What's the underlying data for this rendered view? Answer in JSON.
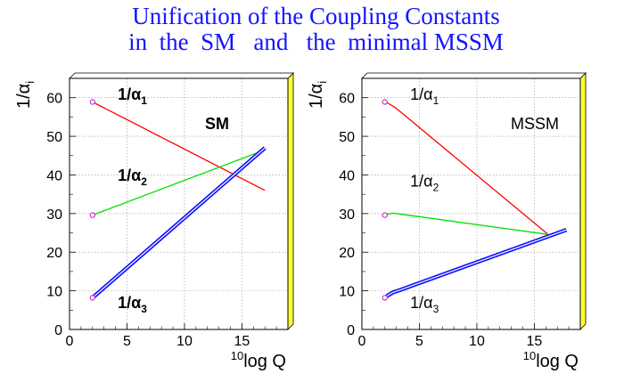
{
  "title": {
    "line1": "Unification of the Coupling Constants",
    "line2": "in  the  SM   and   the  minimal MSSM"
  },
  "colors": {
    "title": "#1414ff",
    "alpha1": "#ff0000",
    "alpha2": "#00e000",
    "alpha3": "#1010ff",
    "frame_shadow": "#ffff33",
    "marker": "#cc33cc"
  },
  "chart_data": [
    {
      "type": "line",
      "panel": "SM",
      "annotation": "SM",
      "ylabel_main": "1/α",
      "ylabel_sub": "i",
      "xlabel_sup": "10",
      "xlabel_main": "log Q",
      "xlim": [
        0,
        19
      ],
      "ylim": [
        0,
        65
      ],
      "xticks": [
        0,
        5,
        10,
        15
      ],
      "yticks": [
        0,
        10,
        20,
        30,
        40,
        50,
        60
      ],
      "grid": true,
      "series": [
        {
          "name": "1/α₁",
          "label_main": "1/α",
          "label_sub": "1",
          "label_x": 4.2,
          "label_y": 59.5,
          "color_key": "alpha1",
          "x": [
            2,
            17
          ],
          "y": [
            58.9,
            36.0
          ],
          "marker_at_start": true
        },
        {
          "name": "1/α₂",
          "label_main": "1/α",
          "label_sub": "2",
          "label_x": 4.2,
          "label_y": 38.5,
          "color_key": "alpha2",
          "x": [
            2,
            17
          ],
          "y": [
            29.6,
            46.5
          ],
          "marker_at_start": true
        },
        {
          "name": "1/α₃",
          "label_main": "1/α",
          "label_sub": "3",
          "label_x": 4.2,
          "label_y": 5.5,
          "color_key": "alpha3",
          "x": [
            2,
            17
          ],
          "y": [
            8.2,
            47.0
          ],
          "marker_at_start": true,
          "band": true
        }
      ]
    },
    {
      "type": "line",
      "panel": "MSSM",
      "annotation": "MSSM",
      "ylabel_main": "1/α",
      "ylabel_sub": "i",
      "xlabel_sup": "10",
      "xlabel_main": "log Q",
      "xlim": [
        0,
        19
      ],
      "ylim": [
        0,
        65
      ],
      "xticks": [
        0,
        5,
        10,
        15
      ],
      "yticks": [
        0,
        10,
        20,
        30,
        40,
        50,
        60
      ],
      "grid": true,
      "series": [
        {
          "name": "1/α₁",
          "label_main": "1/α",
          "label_sub": "1",
          "label_x": 4.2,
          "label_y": 59.5,
          "color_key": "alpha1",
          "x": [
            2,
            2.3,
            2.7,
            3,
            16.2
          ],
          "y": [
            58.9,
            58.5,
            57.8,
            57.2,
            24.6
          ],
          "marker_at_start": true
        },
        {
          "name": "1/α₂",
          "label_main": "1/α",
          "label_sub": "2",
          "label_x": 4.2,
          "label_y": 37.0,
          "color_key": "alpha2",
          "x": [
            2,
            2.3,
            2.7,
            3,
            16.2
          ],
          "y": [
            29.6,
            29.9,
            30.1,
            30.0,
            24.6
          ],
          "marker_at_start": true
        },
        {
          "name": "1/α₃",
          "label_main": "1/α",
          "label_sub": "3",
          "label_x": 4.2,
          "label_y": 5.5,
          "color_key": "alpha3",
          "x": [
            2,
            2.3,
            2.7,
            3.2,
            17.8
          ],
          "y": [
            8.2,
            8.9,
            9.6,
            10.1,
            25.8
          ],
          "marker_at_start": true,
          "band": true
        }
      ]
    }
  ]
}
